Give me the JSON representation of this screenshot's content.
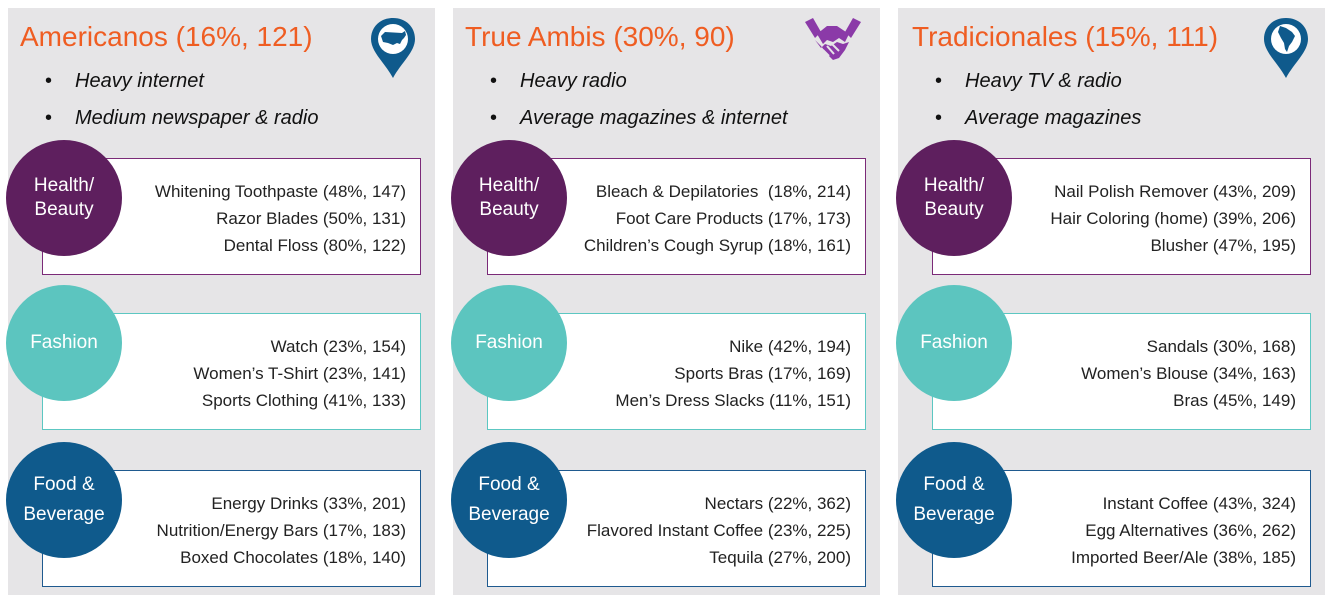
{
  "colors": {
    "title": "#ef5d22",
    "health_beauty": "#5e1f5e",
    "fashion": "#5cc5bf",
    "food_beverage": "#0f5a8c",
    "panel_bg": "#e6e5e7"
  },
  "panels": [
    {
      "title": "Americanos (16%, 121)",
      "icon": "us-map-pin-icon",
      "bullets": [
        "Heavy internet",
        "Medium newspaper & radio"
      ],
      "categories": [
        {
          "label": "Health/ Beauty",
          "items": [
            "Whitening Toothpaste (48%, 147)",
            "Razor Blades (50%, 131)",
            "Dental Floss (80%, 122)"
          ]
        },
        {
          "label": "Fashion",
          "items": [
            "Watch (23%, 154)",
            "Women’s T-Shirt (23%, 141)",
            "Sports Clothing (41%, 133)"
          ]
        },
        {
          "label": "Food & Beverage",
          "items": [
            "Energy Drinks (33%, 201)",
            "Nutrition/Energy Bars (17%, 183)",
            "Boxed Chocolates (18%, 140)"
          ]
        }
      ]
    },
    {
      "title": "True Ambis (30%, 90)",
      "icon": "handshake-icon",
      "bullets": [
        "Heavy radio",
        "Average magazines & internet"
      ],
      "categories": [
        {
          "label": "Health/ Beauty",
          "items": [
            "Bleach & Depilatories  (18%, 214)",
            "Foot Care Products (17%, 173)",
            "Children’s Cough Syrup (18%, 161)"
          ]
        },
        {
          "label": "Fashion",
          "items": [
            "Nike (42%, 194)",
            "Sports Bras (17%, 169)",
            "Men’s Dress Slacks (11%, 151)"
          ]
        },
        {
          "label": "Food & Beverage",
          "items": [
            "Nectars (22%, 362)",
            "Flavored Instant Coffee (23%, 225)",
            "Tequila (27%, 200)"
          ]
        }
      ]
    },
    {
      "title": "Tradicionales (15%, 111)",
      "icon": "latin-america-map-pin-icon",
      "bullets": [
        "Heavy TV & radio",
        "Average magazines"
      ],
      "categories": [
        {
          "label": "Health/ Beauty",
          "items": [
            "Nail Polish Remover (43%, 209)",
            "Hair Coloring (home) (39%, 206)",
            "Blusher (47%, 195)"
          ]
        },
        {
          "label": "Fashion",
          "items": [
            "Sandals (30%, 168)",
            "Women’s Blouse (34%, 163)",
            "Bras (45%, 149)"
          ]
        },
        {
          "label": "Food & Beverage",
          "items": [
            "Instant Coffee (43%, 324)",
            "Egg Alternatives (36%, 262)",
            "Imported Beer/Ale (38%, 185)"
          ]
        }
      ]
    }
  ]
}
